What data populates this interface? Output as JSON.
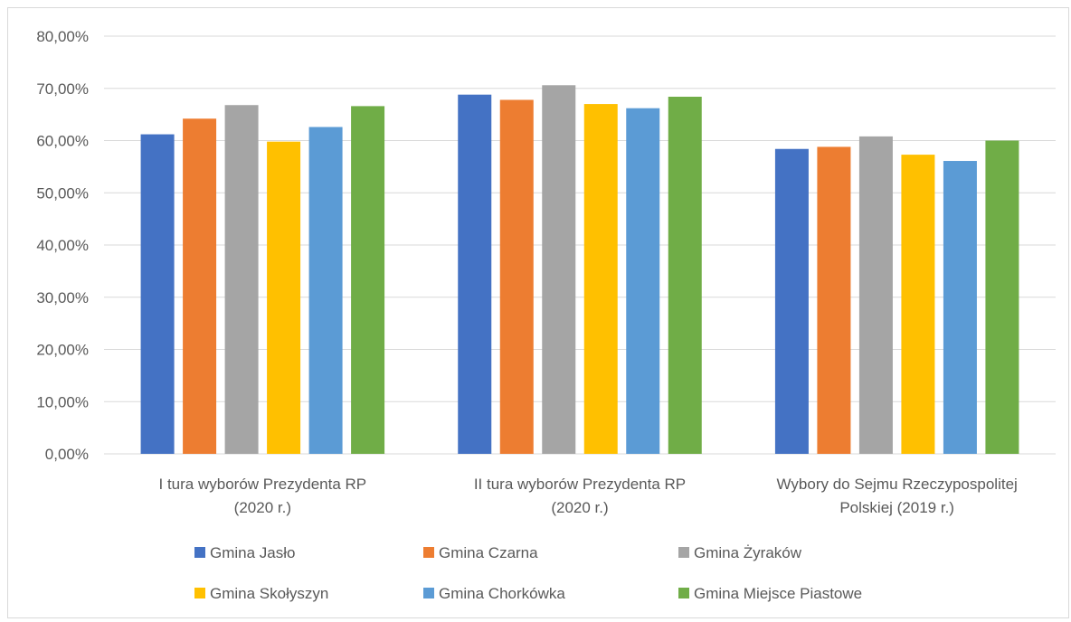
{
  "chart_data": {
    "type": "bar",
    "categories": [
      [
        "I tura wyborów Prezydenta RP",
        "(2020 r.)"
      ],
      [
        "II tura wyborów Prezydenta RP",
        "(2020 r.)"
      ],
      [
        "Wybory do Sejmu Rzeczypospolitej",
        "Polskiej (2019 r.)"
      ]
    ],
    "series": [
      {
        "name": "Gmina Jasło",
        "color": "#4472c4",
        "values": [
          61.2,
          68.8,
          58.4
        ]
      },
      {
        "name": "Gmina Czarna",
        "color": "#ed7d31",
        "values": [
          64.2,
          67.8,
          58.8
        ]
      },
      {
        "name": "Gmina Żyraków",
        "color": "#a5a5a5",
        "values": [
          66.8,
          70.6,
          60.8
        ]
      },
      {
        "name": "Gmina Skołyszyn",
        "color": "#ffc000",
        "values": [
          59.8,
          67.0,
          57.3
        ]
      },
      {
        "name": "Gmina Chorkówka",
        "color": "#5b9bd5",
        "values": [
          62.6,
          66.2,
          56.1
        ]
      },
      {
        "name": "Gmina Miejsce Piastowe",
        "color": "#70ad47",
        "values": [
          66.6,
          68.4,
          60.0
        ]
      }
    ],
    "yticks": [
      "0,00%",
      "10,00%",
      "20,00%",
      "30,00%",
      "40,00%",
      "50,00%",
      "60,00%",
      "70,00%",
      "80,00%"
    ],
    "ylim": [
      0,
      80
    ],
    "grid": true,
    "legend_position": "bottom",
    "title": "",
    "xlabel": "",
    "ylabel": ""
  }
}
